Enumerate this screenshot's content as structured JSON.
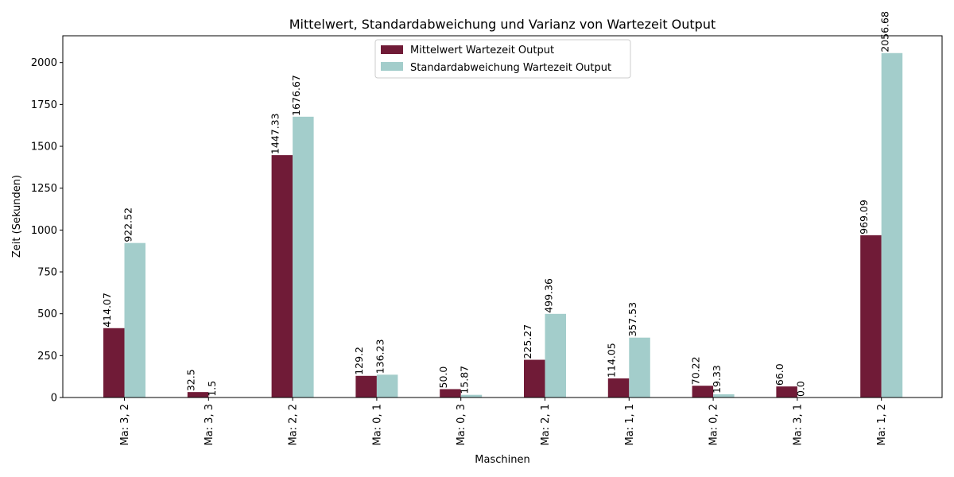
{
  "chart_data": {
    "type": "bar",
    "title": "Mittelwert, Standardabweichung und Varianz von Wartezeit Output",
    "xlabel": "Maschinen",
    "ylabel": "Zeit (Sekunden)",
    "ylim": [
      0,
      2160
    ],
    "yticks": [
      0,
      250,
      500,
      750,
      1000,
      1250,
      1500,
      1750,
      2000
    ],
    "categories": [
      "Ma: 3, 2",
      "Ma: 3, 3",
      "Ma: 2, 2",
      "Ma: 0, 1",
      "Ma: 0, 3",
      "Ma: 2, 1",
      "Ma: 1, 1",
      "Ma: 0, 2",
      "Ma: 3, 1",
      "Ma: 1, 2"
    ],
    "series": [
      {
        "name": "Mittelwert Wartezeit Output",
        "color": "#701b37",
        "values": [
          414.07,
          32.5,
          1447.33,
          129.2,
          50.0,
          225.27,
          114.05,
          70.22,
          66.0,
          969.09
        ],
        "labels": [
          "414.07",
          "32.5",
          "1447.33",
          "129.2",
          "50.0",
          "225.27",
          "114.05",
          "70.22",
          "66.0",
          "969.09"
        ]
      },
      {
        "name": "Standardabweichung Wartezeit Output",
        "color": "#a3cdcb",
        "values": [
          922.52,
          1.5,
          1676.67,
          136.23,
          15.87,
          499.36,
          357.53,
          19.33,
          0.0,
          2056.68
        ],
        "labels": [
          "922.52",
          "1.5",
          "1676.67",
          "136.23",
          "15.87",
          "499.36",
          "357.53",
          "19.33",
          "0.0",
          "2056.68"
        ]
      }
    ],
    "legend_position": "top-center",
    "grid": false
  }
}
